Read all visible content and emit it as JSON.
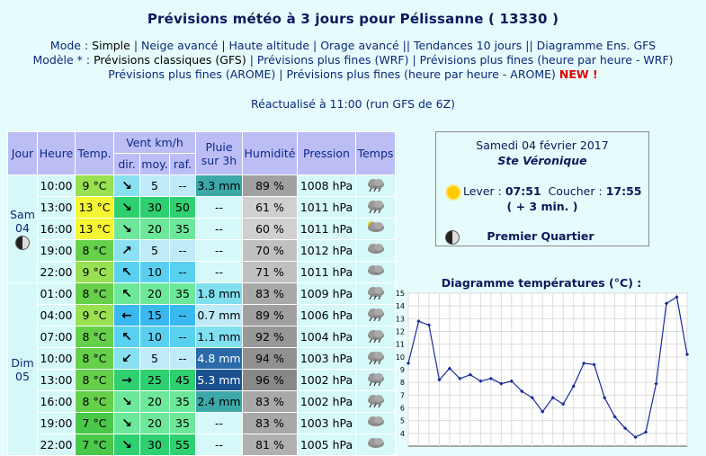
{
  "title": "Prévisions météo à 3 jours pour Pélissanne ( 13330 )",
  "mode": {
    "label": "Mode :",
    "items": [
      "Simple",
      "Neige avancé",
      "Haute altitude",
      "Orage avancé",
      "Tendances 10 jours",
      "Diagramme Ens. GFS"
    ],
    "seps": [
      " | ",
      " | ",
      " | ",
      " || ",
      " || "
    ]
  },
  "modele": {
    "label": "Modèle * :",
    "items": [
      "Prévisions classiques (GFS)",
      "Prévisions plus fines (WRF)",
      "Prévisions plus fines (heure par heure - WRF)"
    ],
    "line2": [
      "Prévisions plus fines (AROME)",
      "Prévisions plus fines (heure par heure - AROME)"
    ],
    "new": "NEW !"
  },
  "refresh": "Réactualisé à 11:00 (run GFS de 6Z)",
  "headers": {
    "jour": "Jour",
    "heure": "Heure",
    "temp": "Temp.",
    "vent": "Vent km/h",
    "dir": "dir.",
    "moy": "moy.",
    "raf": "raf.",
    "pluie": "Pluie sur 3h",
    "humidite": "Humidité",
    "pression": "Pression",
    "temps": "Temps"
  },
  "days": [
    {
      "name": "Sam",
      "num": "04",
      "moon": "moon-first-quarter-icon"
    },
    {
      "name": "Dim",
      "num": "05"
    }
  ],
  "rows": [
    {
      "h": "10:00",
      "t": "9 °C",
      "tc": "#99e052",
      "d": "↘",
      "dc": "#88e0f0",
      "m": "5",
      "r": "--",
      "mc": "#bfeaf8",
      "p": "3.3 mm",
      "pc": "#3da8a8",
      "hu": "89 %",
      "hc": "#a0a0a0",
      "pr": "1008 hPa",
      "w": "rain"
    },
    {
      "h": "13:00",
      "t": "13 °C",
      "tc": "#f5f532",
      "d": "↘",
      "dc": "#2fd070",
      "m": "30",
      "r": "50",
      "mc": "#2fd070",
      "p": "--",
      "pc": "#d6f8f8",
      "hu": "61 %",
      "hc": "#d0d0d0",
      "pr": "1011 hPa",
      "w": "rain"
    },
    {
      "h": "16:00",
      "t": "13 °C",
      "tc": "#f5f532",
      "d": "↘",
      "dc": "#6de89a",
      "m": "20",
      "r": "35",
      "mc": "#6de89a",
      "p": "--",
      "pc": "#d6f8f8",
      "hu": "60 %",
      "hc": "#d0d0d0",
      "pr": "1011 hPa",
      "w": "suncloud"
    },
    {
      "h": "19:00",
      "t": "8 °C",
      "tc": "#66d04a",
      "d": "↗",
      "dc": "#88e0f0",
      "m": "5",
      "r": "--",
      "mc": "#bfeaf8",
      "p": "--",
      "pc": "#d6f8f8",
      "hu": "70 %",
      "hc": "#c0c0c0",
      "pr": "1012 hPa",
      "w": "cloud"
    },
    {
      "h": "22:00",
      "t": "9 °C",
      "tc": "#99e052",
      "d": "↖",
      "dc": "#5ad0f0",
      "m": "10",
      "r": "--",
      "mc": "#5ad0f0",
      "p": "--",
      "pc": "#d6f8f8",
      "hu": "71 %",
      "hc": "#c0c0c0",
      "pr": "1011 hPa",
      "w": "cloud"
    },
    {
      "h": "01:00",
      "t": "8 °C",
      "tc": "#66d04a",
      "d": "↖",
      "dc": "#6de89a",
      "m": "20",
      "r": "35",
      "mc": "#6de89a",
      "p": "1.8 mm",
      "pc": "#80e0f0",
      "hu": "83 %",
      "hc": "#a8a8a8",
      "pr": "1009 hPa",
      "w": "rain"
    },
    {
      "h": "04:00",
      "t": "9 °C",
      "tc": "#99e052",
      "d": "←",
      "dc": "#3ab8f0",
      "m": "15",
      "r": "--",
      "mc": "#3ab8f0",
      "p": "0.7 mm",
      "pc": "#bfeaf8",
      "hu": "89 %",
      "hc": "#a0a0a0",
      "pr": "1006 hPa",
      "w": "rain"
    },
    {
      "h": "07:00",
      "t": "8 °C",
      "tc": "#66d04a",
      "d": "↖",
      "dc": "#5ad0f0",
      "m": "10",
      "r": "--",
      "mc": "#5ad0f0",
      "p": "1.1 mm",
      "pc": "#80e0f0",
      "hu": "92 %",
      "hc": "#989898",
      "pr": "1004 hPa",
      "w": "rain"
    },
    {
      "h": "10:00",
      "t": "8 °C",
      "tc": "#66d04a",
      "d": "↙",
      "dc": "#88e0f0",
      "m": "5",
      "r": "--",
      "mc": "#bfeaf8",
      "p": "4.8 mm",
      "pc": "#2a6aa8",
      "hu": "94 %",
      "hc": "#909090",
      "pr": "1003 hPa",
      "w": "rain"
    },
    {
      "h": "13:00",
      "t": "8 °C",
      "tc": "#66d04a",
      "d": "→",
      "dc": "#2fd070",
      "m": "25",
      "r": "45",
      "mc": "#2fd070",
      "p": "5.3 mm",
      "pc": "#1a5090",
      "hu": "96 %",
      "hc": "#888888",
      "pr": "1002 hPa",
      "w": "rain"
    },
    {
      "h": "16:00",
      "t": "8 °C",
      "tc": "#66d04a",
      "d": "↘",
      "dc": "#6de89a",
      "m": "20",
      "r": "35",
      "mc": "#6de89a",
      "p": "2.4 mm",
      "pc": "#3da8a8",
      "hu": "83 %",
      "hc": "#a8a8a8",
      "pr": "1002 hPa",
      "w": "rain"
    },
    {
      "h": "19:00",
      "t": "7 °C",
      "tc": "#4ac84a",
      "d": "↘",
      "dc": "#6de89a",
      "m": "20",
      "r": "35",
      "mc": "#6de89a",
      "p": "--",
      "pc": "#d6f8f8",
      "hu": "83 %",
      "hc": "#a8a8a8",
      "pr": "1003 hPa",
      "w": "cloud"
    },
    {
      "h": "22:00",
      "t": "7 °C",
      "tc": "#4ac84a",
      "d": "↘",
      "dc": "#2fd070",
      "m": "30",
      "r": "55",
      "mc": "#2fd070",
      "p": "--",
      "pc": "#d6f8f8",
      "hu": "81 %",
      "hc": "#b0b0b0",
      "pr": "1005 hPa",
      "w": "cloud"
    }
  ],
  "ephem": {
    "date": "Samedi 04 février 2017",
    "saint": "Ste Véronique",
    "lever_label": "Lever :",
    "lever": "07:51",
    "coucher_label": "Coucher :",
    "coucher": "17:55",
    "extra": "( + 3 min. )",
    "phase": "Premier Quartier"
  },
  "chart_data": {
    "type": "line",
    "title": "Diagramme températures (°C) :",
    "ylim": [
      3,
      15
    ],
    "yticks": [
      4,
      5,
      6,
      7,
      8,
      9,
      10,
      11,
      12,
      13,
      14,
      15
    ],
    "values": [
      9.5,
      12.8,
      12.5,
      8.2,
      9.1,
      8.3,
      8.6,
      8.1,
      8.3,
      7.9,
      8.1,
      7.3,
      6.8,
      5.7,
      6.8,
      6.3,
      7.7,
      9.5,
      9.4,
      6.8,
      5.3,
      4.4,
      3.7,
      4.1,
      7.9,
      14.2,
      14.7,
      10.2
    ],
    "color": "#1a2a9a",
    "grid": true
  }
}
